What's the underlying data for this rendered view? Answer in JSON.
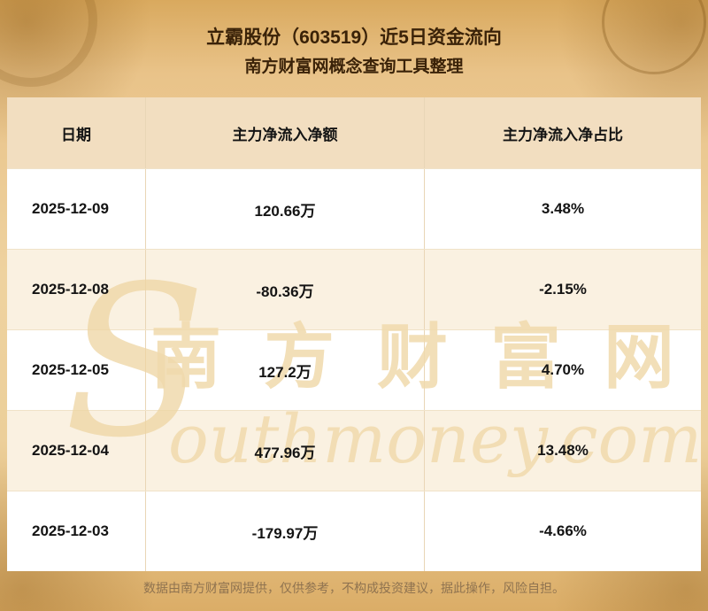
{
  "page": {
    "title_line1": "立霸股份（603519）近5日资金流向",
    "title_line2": "南方财富网概念查询工具整理",
    "footer": "数据由南方财富网提供，仅供参考，不构成投资建议，据此操作，风险自担。"
  },
  "watermark": {
    "initial": "S",
    "cn": "南方财富网",
    "en": "outhmoney.com"
  },
  "colors": {
    "title_text": "#3a2208",
    "header_row_bg": "#f2dec0",
    "row_bg": "#ffffff",
    "row_alt_bg": "#faf1e1",
    "column_border": "#e9d6b6",
    "footer_text": "#8f7350",
    "background_gold": "#e2b877",
    "watermark": "#f0d9ac"
  },
  "chart_data": {
    "type": "table",
    "title": "立霸股份（603519）近5日资金流向",
    "subtitle": "南方财富网概念查询工具整理",
    "columns": [
      "日期",
      "主力净流入净额",
      "主力净流入净占比"
    ],
    "rows": [
      [
        "2025-12-09",
        "120.66万",
        "3.48%"
      ],
      [
        "2025-12-08",
        "-80.36万",
        "-2.15%"
      ],
      [
        "2025-12-05",
        "127.2万",
        "4.70%"
      ],
      [
        "2025-12-04",
        "477.96万",
        "13.48%"
      ],
      [
        "2025-12-03",
        "-179.97万",
        "-4.66%"
      ]
    ]
  }
}
